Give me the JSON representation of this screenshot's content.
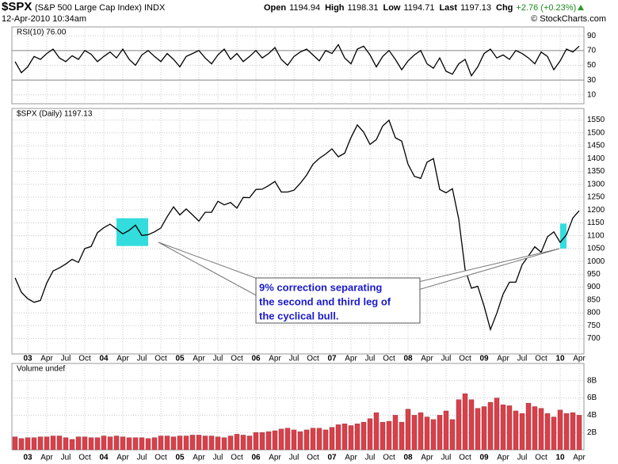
{
  "header": {
    "symbol": "$SPX",
    "name": "(S&P 500 Large Cap Index) INDX",
    "timestamp": "12-Apr-2010 10:34am",
    "credit": "© StockCharts.com",
    "quote": [
      {
        "label": "Open",
        "value": 1194.94
      },
      {
        "label": "High",
        "value": 1198.31
      },
      {
        "label": "Low",
        "value": 1194.71
      },
      {
        "label": "Last",
        "value": 1197.13
      },
      {
        "label": "Chg",
        "value": "+2.76 (+0.23%)"
      }
    ]
  },
  "annotation": {
    "lines": [
      "9% correction separating",
      "the second and third leg of",
      "the cyclical bull."
    ]
  },
  "chart_data": [
    {
      "type": "line",
      "legend": "RSI(10) 76.00",
      "color": "#000000",
      "xlim": [
        "2002-11",
        "2010-04"
      ],
      "ylim": [
        -2,
        102
      ],
      "yticks": [
        10,
        30,
        50,
        70,
        90
      ],
      "bands": [
        30,
        70
      ],
      "grid": true,
      "x": [
        "2002-11",
        "2002-12",
        "2003-01",
        "2003-02",
        "2003-03",
        "2003-04",
        "2003-05",
        "2003-06",
        "2003-07",
        "2003-08",
        "2003-09",
        "2003-10",
        "2003-11",
        "2003-12",
        "2004-01",
        "2004-02",
        "2004-03",
        "2004-04",
        "2004-05",
        "2004-06",
        "2004-07",
        "2004-08",
        "2004-09",
        "2004-10",
        "2004-11",
        "2004-12",
        "2005-01",
        "2005-02",
        "2005-03",
        "2005-04",
        "2005-05",
        "2005-06",
        "2005-07",
        "2005-08",
        "2005-09",
        "2005-10",
        "2005-11",
        "2005-12",
        "2006-01",
        "2006-02",
        "2006-03",
        "2006-04",
        "2006-05",
        "2006-06",
        "2006-07",
        "2006-08",
        "2006-09",
        "2006-10",
        "2006-11",
        "2006-12",
        "2007-01",
        "2007-02",
        "2007-03",
        "2007-04",
        "2007-05",
        "2007-06",
        "2007-07",
        "2007-08",
        "2007-09",
        "2007-10",
        "2007-11",
        "2007-12",
        "2008-01",
        "2008-02",
        "2008-03",
        "2008-04",
        "2008-05",
        "2008-06",
        "2008-07",
        "2008-08",
        "2008-09",
        "2008-10",
        "2008-11",
        "2008-12",
        "2009-01",
        "2009-02",
        "2009-03",
        "2009-04",
        "2009-05",
        "2009-06",
        "2009-07",
        "2009-08",
        "2009-09",
        "2009-10",
        "2009-11",
        "2009-12",
        "2010-01",
        "2010-02",
        "2010-03",
        "2010-04"
      ],
      "values": [
        55,
        40,
        48,
        62,
        58,
        66,
        72,
        60,
        55,
        63,
        58,
        70,
        65,
        55,
        62,
        68,
        60,
        72,
        58,
        50,
        64,
        70,
        62,
        55,
        66,
        58,
        48,
        62,
        66,
        70,
        60,
        52,
        64,
        72,
        58,
        66,
        55,
        62,
        70,
        60,
        66,
        74,
        58,
        50,
        62,
        68,
        72,
        64,
        56,
        70,
        66,
        78,
        60,
        52,
        72,
        76,
        64,
        48,
        62,
        70,
        58,
        44,
        56,
        64,
        70,
        52,
        46,
        60,
        42,
        38,
        52,
        58,
        36,
        48,
        66,
        72,
        60,
        64,
        58,
        70,
        66,
        60,
        52,
        68,
        62,
        44,
        56,
        72,
        68,
        76
      ]
    },
    {
      "type": "line",
      "legend": "$SPX (Daily) 1197.13",
      "color": "#000000",
      "highlight_color": "#33dddd",
      "xlim": [
        "2002-11",
        "2010-04"
      ],
      "ylim": [
        640,
        1595
      ],
      "yticks": [
        700,
        750,
        800,
        850,
        900,
        950,
        1000,
        1050,
        1100,
        1150,
        1200,
        1250,
        1300,
        1350,
        1400,
        1450,
        1500,
        1550
      ],
      "grid": true,
      "highlights": [
        {
          "x": [
            "2004-03",
            "2004-08"
          ],
          "y": [
            1060,
            1168
          ]
        },
        {
          "x": [
            "2010-01",
            "2010-02"
          ],
          "y": [
            1050,
            1147
          ]
        }
      ],
      "xticks": [
        {
          "value": "2003-01",
          "label": "03"
        },
        {
          "value": "2003-04",
          "label": "Apr"
        },
        {
          "value": "2003-07",
          "label": "Jul"
        },
        {
          "value": "2003-10",
          "label": "Oct"
        },
        {
          "value": "2004-01",
          "label": "04"
        },
        {
          "value": "2004-04",
          "label": "Apr"
        },
        {
          "value": "2004-07",
          "label": "Jul"
        },
        {
          "value": "2004-10",
          "label": "Oct"
        },
        {
          "value": "2005-01",
          "label": "05"
        },
        {
          "value": "2005-04",
          "label": "Apr"
        },
        {
          "value": "2005-07",
          "label": "Jul"
        },
        {
          "value": "2005-10",
          "label": "Oct"
        },
        {
          "value": "2006-01",
          "label": "06"
        },
        {
          "value": "2006-04",
          "label": "Apr"
        },
        {
          "value": "2006-07",
          "label": "Jul"
        },
        {
          "value": "2006-10",
          "label": "Oct"
        },
        {
          "value": "2007-01",
          "label": "07"
        },
        {
          "value": "2007-04",
          "label": "Apr"
        },
        {
          "value": "2007-07",
          "label": "Jul"
        },
        {
          "value": "2007-10",
          "label": "Oct"
        },
        {
          "value": "2008-01",
          "label": "08"
        },
        {
          "value": "2008-04",
          "label": "Apr"
        },
        {
          "value": "2008-07",
          "label": "Jul"
        },
        {
          "value": "2008-10",
          "label": "Oct"
        },
        {
          "value": "2009-01",
          "label": "09"
        },
        {
          "value": "2009-04",
          "label": "Apr"
        },
        {
          "value": "2009-07",
          "label": "Jul"
        },
        {
          "value": "2009-10",
          "label": "Oct"
        },
        {
          "value": "2010-01",
          "label": "10"
        },
        {
          "value": "2010-04",
          "label": "Apr"
        }
      ],
      "x": [
        "2002-11",
        "2002-12",
        "2003-01",
        "2003-02",
        "2003-03",
        "2003-04",
        "2003-05",
        "2003-06",
        "2003-07",
        "2003-08",
        "2003-09",
        "2003-10",
        "2003-11",
        "2003-12",
        "2004-01",
        "2004-02",
        "2004-03",
        "2004-04",
        "2004-05",
        "2004-06",
        "2004-07",
        "2004-08",
        "2004-09",
        "2004-10",
        "2004-11",
        "2004-12",
        "2005-01",
        "2005-02",
        "2005-03",
        "2005-04",
        "2005-05",
        "2005-06",
        "2005-07",
        "2005-08",
        "2005-09",
        "2005-10",
        "2005-11",
        "2005-12",
        "2006-01",
        "2006-02",
        "2006-03",
        "2006-04",
        "2006-05",
        "2006-06",
        "2006-07",
        "2006-08",
        "2006-09",
        "2006-10",
        "2006-11",
        "2006-12",
        "2007-01",
        "2007-02",
        "2007-03",
        "2007-04",
        "2007-05",
        "2007-06",
        "2007-07",
        "2007-08",
        "2007-09",
        "2007-10",
        "2007-11",
        "2007-12",
        "2008-01",
        "2008-02",
        "2008-03",
        "2008-04",
        "2008-05",
        "2008-06",
        "2008-07",
        "2008-08",
        "2008-09",
        "2008-10",
        "2008-11",
        "2008-12",
        "2009-01",
        "2009-02",
        "2009-03",
        "2009-04",
        "2009-05",
        "2009-06",
        "2009-07",
        "2009-08",
        "2009-09",
        "2009-10",
        "2009-11",
        "2009-12",
        "2010-01",
        "2010-02",
        "2010-03",
        "2010-04"
      ],
      "values": [
        936,
        880,
        855,
        841,
        848,
        916,
        963,
        975,
        990,
        1008,
        996,
        1050,
        1058,
        1112,
        1131,
        1145,
        1126,
        1107,
        1121,
        1141,
        1101,
        1104,
        1115,
        1130,
        1174,
        1212,
        1181,
        1204,
        1181,
        1157,
        1191,
        1191,
        1234,
        1220,
        1229,
        1207,
        1249,
        1248,
        1280,
        1281,
        1295,
        1311,
        1270,
        1270,
        1277,
        1304,
        1336,
        1378,
        1401,
        1418,
        1438,
        1407,
        1421,
        1482,
        1531,
        1503,
        1455,
        1474,
        1527,
        1549,
        1481,
        1468,
        1378,
        1331,
        1323,
        1386,
        1400,
        1280,
        1267,
        1283,
        1165,
        969,
        896,
        903,
        826,
        735,
        798,
        873,
        919,
        919,
        987,
        1021,
        1057,
        1036,
        1096,
        1115,
        1074,
        1104,
        1169,
        1197
      ]
    },
    {
      "type": "bar",
      "legend": "Volume undef",
      "color": "#d9404a",
      "xlim": [
        "2002-11",
        "2010-04"
      ],
      "ylim": [
        0,
        10
      ],
      "yticks": [
        {
          "value": 2,
          "label": "2B"
        },
        {
          "value": 4,
          "label": "4B"
        },
        {
          "value": 6,
          "label": "6B"
        },
        {
          "value": 8,
          "label": "8B"
        }
      ],
      "grid": true,
      "xticks": [
        {
          "value": "2003-01",
          "label": "03"
        },
        {
          "value": "2003-04",
          "label": "Apr"
        },
        {
          "value": "2003-07",
          "label": "Jul"
        },
        {
          "value": "2003-10",
          "label": "Oct"
        },
        {
          "value": "2004-01",
          "label": "04"
        },
        {
          "value": "2004-04",
          "label": "Apr"
        },
        {
          "value": "2004-07",
          "label": "Jul"
        },
        {
          "value": "2004-10",
          "label": "Oct"
        },
        {
          "value": "2005-01",
          "label": "05"
        },
        {
          "value": "2005-04",
          "label": "Apr"
        },
        {
          "value": "2005-07",
          "label": "Jul"
        },
        {
          "value": "2005-10",
          "label": "Oct"
        },
        {
          "value": "2006-01",
          "label": "06"
        },
        {
          "value": "2006-04",
          "label": "Apr"
        },
        {
          "value": "2006-07",
          "label": "Jul"
        },
        {
          "value": "2006-10",
          "label": "Oct"
        },
        {
          "value": "2007-01",
          "label": "07"
        },
        {
          "value": "2007-04",
          "label": "Apr"
        },
        {
          "value": "2007-07",
          "label": "Jul"
        },
        {
          "value": "2007-10",
          "label": "Oct"
        },
        {
          "value": "2008-01",
          "label": "08"
        },
        {
          "value": "2008-04",
          "label": "Apr"
        },
        {
          "value": "2008-07",
          "label": "Jul"
        },
        {
          "value": "2008-10",
          "label": "Oct"
        },
        {
          "value": "2009-01",
          "label": "09"
        },
        {
          "value": "2009-04",
          "label": "Apr"
        },
        {
          "value": "2009-07",
          "label": "Jul"
        },
        {
          "value": "2009-10",
          "label": "Oct"
        },
        {
          "value": "2010-01",
          "label": "10"
        },
        {
          "value": "2010-04",
          "label": "Apr"
        }
      ],
      "x": [
        "2002-11",
        "2002-12",
        "2003-01",
        "2003-02",
        "2003-03",
        "2003-04",
        "2003-05",
        "2003-06",
        "2003-07",
        "2003-08",
        "2003-09",
        "2003-10",
        "2003-11",
        "2003-12",
        "2004-01",
        "2004-02",
        "2004-03",
        "2004-04",
        "2004-05",
        "2004-06",
        "2004-07",
        "2004-08",
        "2004-09",
        "2004-10",
        "2004-11",
        "2004-12",
        "2005-01",
        "2005-02",
        "2005-03",
        "2005-04",
        "2005-05",
        "2005-06",
        "2005-07",
        "2005-08",
        "2005-09",
        "2005-10",
        "2005-11",
        "2005-12",
        "2006-01",
        "2006-02",
        "2006-03",
        "2006-04",
        "2006-05",
        "2006-06",
        "2006-07",
        "2006-08",
        "2006-09",
        "2006-10",
        "2006-11",
        "2006-12",
        "2007-01",
        "2007-02",
        "2007-03",
        "2007-04",
        "2007-05",
        "2007-06",
        "2007-07",
        "2007-08",
        "2007-09",
        "2007-10",
        "2007-11",
        "2007-12",
        "2008-01",
        "2008-02",
        "2008-03",
        "2008-04",
        "2008-05",
        "2008-06",
        "2008-07",
        "2008-08",
        "2008-09",
        "2008-10",
        "2008-11",
        "2008-12",
        "2009-01",
        "2009-02",
        "2009-03",
        "2009-04",
        "2009-05",
        "2009-06",
        "2009-07",
        "2009-08",
        "2009-09",
        "2009-10",
        "2009-11",
        "2009-12",
        "2010-01",
        "2010-02",
        "2010-03",
        "2010-04"
      ],
      "values": [
        1.5,
        1.3,
        1.4,
        1.4,
        1.5,
        1.5,
        1.6,
        1.6,
        1.4,
        1.2,
        1.5,
        1.5,
        1.4,
        1.4,
        1.6,
        1.5,
        1.6,
        1.5,
        1.4,
        1.4,
        1.4,
        1.3,
        1.4,
        1.6,
        1.6,
        1.5,
        1.6,
        1.6,
        1.7,
        1.7,
        1.6,
        1.6,
        1.5,
        1.4,
        1.6,
        1.8,
        1.7,
        1.6,
        2.0,
        2.0,
        2.1,
        2.2,
        2.4,
        2.5,
        2.3,
        2.1,
        2.3,
        2.5,
        2.5,
        2.3,
        2.6,
        2.9,
        3.0,
        2.8,
        3.0,
        3.2,
        3.6,
        4.3,
        3.2,
        3.3,
        4.0,
        3.2,
        4.7,
        4.0,
        4.3,
        3.8,
        3.5,
        4.0,
        4.5,
        3.5,
        5.8,
        6.5,
        5.8,
        4.8,
        5.0,
        5.5,
        6.0,
        5.2,
        5.1,
        4.5,
        4.2,
        5.4,
        5.0,
        4.8,
        4.2,
        3.8,
        4.6,
        4.2,
        4.3,
        4.0
      ]
    }
  ]
}
